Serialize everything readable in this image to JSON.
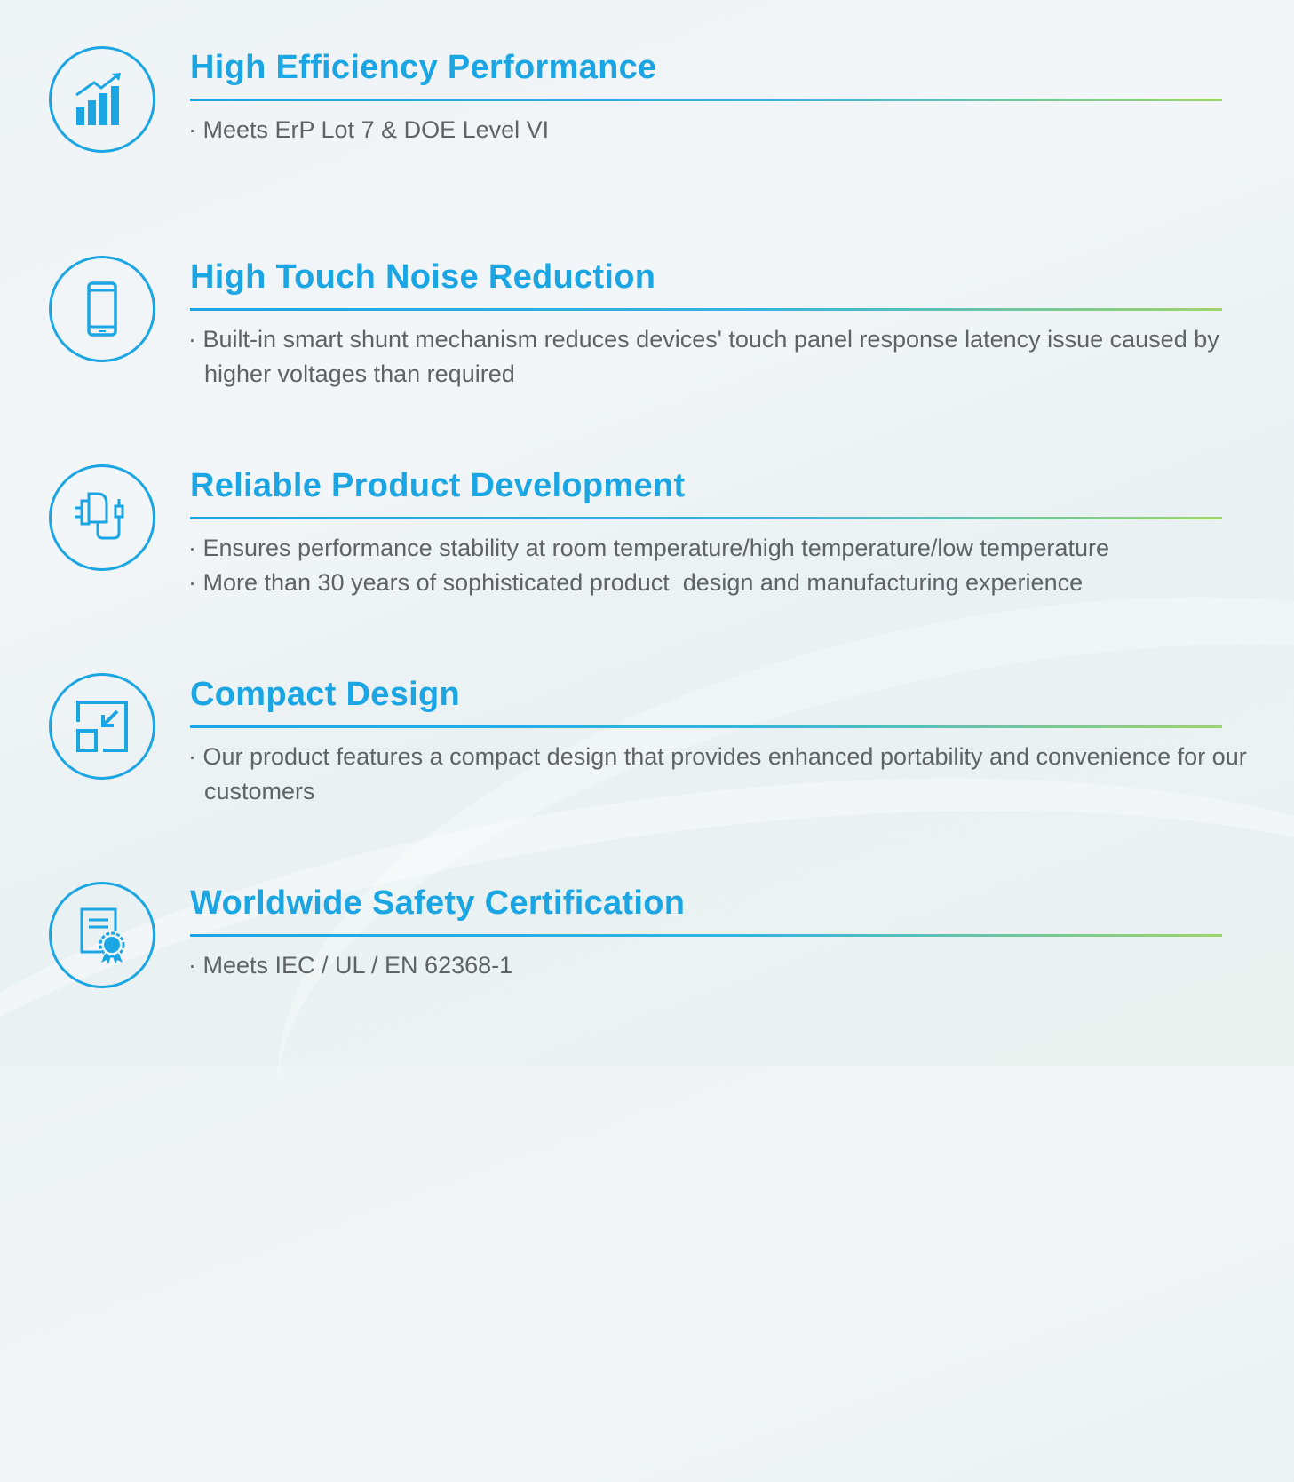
{
  "colors": {
    "accent": "#1ba6e3",
    "rule_end": "#9fd46a",
    "text": "#5f6366"
  },
  "features": [
    {
      "icon": "bar-chart-growth-icon",
      "title": "High Efficiency Performance",
      "bullets": [
        "· Meets ErP Lot 7 & DOE Level VI"
      ]
    },
    {
      "icon": "smartphone-icon",
      "title": "High Touch Noise Reduction",
      "bullets": [
        "· Built-in smart shunt mechanism reduces devices' touch panel response latency issue caused by higher voltages than required"
      ]
    },
    {
      "icon": "power-adapter-icon",
      "title": "Reliable Product Development",
      "bullets": [
        "· Ensures performance stability at room temperature/high temperature/low temperature",
        "· More than 30 years of sophisticated product  design and manufacturing experience"
      ]
    },
    {
      "icon": "compact-resize-icon",
      "title": "Compact Design",
      "bullets": [
        "· Our product features a compact design that provides enhanced portability and convenience for our customers"
      ]
    },
    {
      "icon": "certificate-icon",
      "title": "Worldwide Safety Certification",
      "bullets": [
        "· Meets IEC / UL / EN 62368-1"
      ]
    }
  ]
}
